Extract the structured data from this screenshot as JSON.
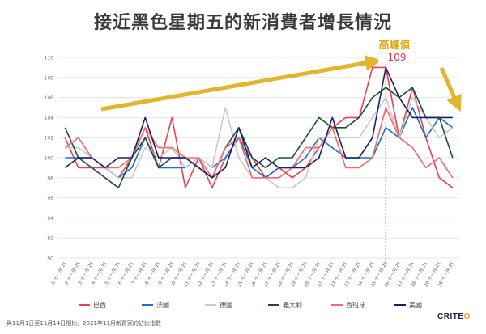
{
  "chart_data": {
    "type": "line",
    "title": "接近黑色星期五的新消費者增長情況",
    "ylim": [
      90,
      110
    ],
    "yticks": [
      90,
      92,
      94,
      96,
      98,
      100,
      102,
      104,
      106,
      108,
      110
    ],
    "categories": [
      "1-十一月-21",
      "2-十一月-21",
      "3-十一月-21",
      "4-十一月-21",
      "5-十一月-21",
      "6-十一月-21",
      "7-十一月-21",
      "8-十一月-21",
      "9-十一月-21",
      "10-十一月-21",
      "11-十一月-21",
      "12-十一月-21",
      "13-十一月-21",
      "14-十一月-21",
      "15-十一月-21",
      "16-十一月-21",
      "17-十一月-21",
      "18-十一月-21",
      "19-十一月-21",
      "20-十一月-21",
      "21-十一月-21",
      "22-十一月-21",
      "23-十一月-21",
      "24-十一月-21",
      "25-十一月-21",
      "26-十一月-21",
      "27-十一月-21",
      "28-十一月-21",
      "29-十一月-21",
      "30-十一月-21"
    ],
    "series": [
      {
        "name": "巴西",
        "color": "#e8414e",
        "values": [
          102,
          99,
          99,
          99,
          98,
          100,
          103,
          99,
          104,
          97,
          100,
          97,
          100,
          102,
          100,
          98,
          99,
          98,
          99,
          101,
          103,
          104,
          104,
          109,
          109,
          102,
          107,
          102,
          98,
          97
        ]
      },
      {
        "name": "法國",
        "color": "#1f6fc6",
        "values": [
          100,
          100,
          100,
          99,
          98,
          99,
          102,
          99,
          99,
          99,
          100,
          99,
          100,
          102,
          99,
          98,
          99,
          99,
          100,
          102,
          101,
          100,
          100,
          100,
          103,
          102,
          105,
          102,
          104,
          103
        ]
      },
      {
        "name": "德國",
        "color": "#c8c8d0",
        "values": [
          101,
          101,
          100,
          99,
          98,
          98,
          101,
          100,
          101,
          99,
          100,
          99,
          105,
          100,
          98,
          98,
          97,
          97,
          98,
          102,
          102,
          102,
          102,
          104,
          106,
          102,
          106,
          104,
          102,
          103
        ]
      },
      {
        "name": "義大利",
        "color": "#1d4d3a",
        "values": [
          103,
          100,
          99,
          98,
          97,
          100,
          102,
          99,
          100,
          100,
          99,
          98,
          101,
          103,
          100,
          99,
          100,
          100,
          102,
          104,
          103,
          103,
          104,
          106,
          107,
          106,
          107,
          104,
          104,
          100
        ]
      },
      {
        "name": "西班牙",
        "color": "#f06a6a",
        "values": [
          101,
          102,
          100,
          99,
          99,
          100,
          103,
          101,
          101,
          100,
          100,
          98,
          101,
          102,
          98,
          98,
          98,
          99,
          101,
          101,
          103,
          99,
          99,
          100,
          105,
          102,
          101,
          99,
          100,
          98
        ]
      },
      {
        "name": "美國",
        "color": "#1c1f66",
        "values": [
          99,
          100,
          100,
          99,
          100,
          100,
          104,
          100,
          100,
          100,
          99,
          98,
          99,
          103,
          99,
          100,
          99,
          99,
          99,
          100,
          104,
          100,
          100,
          102,
          109,
          106,
          104,
          104,
          104,
          104
        ]
      }
    ],
    "peak_label": "高峰值",
    "peak_value_label": "109"
  },
  "footnote": "與11月1日至11月14日相比，2021年11月新買家的佔比指數",
  "brand": {
    "name_main": "CRITE",
    "name_accent": "O"
  }
}
